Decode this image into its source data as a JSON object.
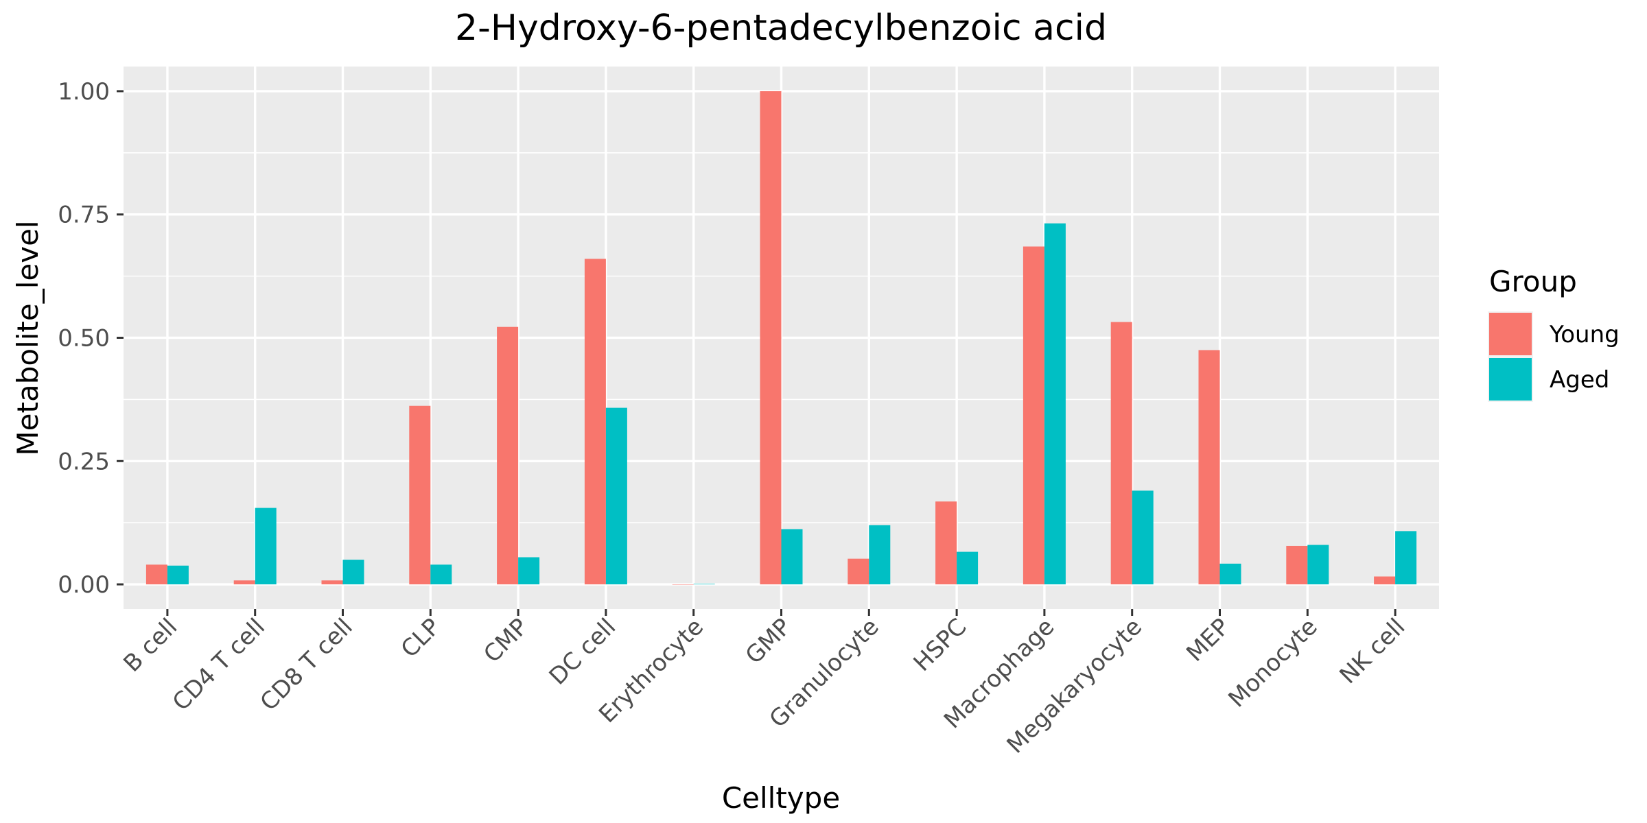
{
  "chart_data": {
    "type": "bar",
    "title": "2-Hydroxy-6-pentadecylbenzoic acid",
    "xlabel": "Celltype",
    "ylabel": "Metabolite_level",
    "categories": [
      "B cell",
      "CD4 T cell",
      "CD8 T cell",
      "CLP",
      "CMP",
      "DC cell",
      "Erythrocyte",
      "GMP",
      "Granulocyte",
      "HSPC",
      "Macrophage",
      "Megakaryocyte",
      "MEP",
      "Monocyte",
      "NK cell"
    ],
    "series": [
      {
        "name": "Young",
        "color": "#F8766D",
        "values": [
          0.04,
          0.008,
          0.008,
          0.362,
          0.522,
          0.66,
          0.0,
          1.0,
          0.052,
          0.168,
          0.685,
          0.532,
          0.475,
          0.078,
          0.016
        ]
      },
      {
        "name": "Aged",
        "color": "#00BFC4",
        "values": [
          0.038,
          0.155,
          0.05,
          0.04,
          0.055,
          0.358,
          0.001,
          0.112,
          0.12,
          0.066,
          0.732,
          0.19,
          0.042,
          0.08,
          0.108
        ]
      }
    ],
    "yticks": [
      0.0,
      0.25,
      0.5,
      0.75,
      1.0
    ],
    "ytick_labels": [
      "0.00",
      "0.25",
      "0.50",
      "0.75",
      "1.00"
    ],
    "ylim": [
      -0.05,
      1.05
    ],
    "legend": {
      "title": "Group",
      "position": "right"
    },
    "grid": true,
    "panel_background": "#EBEBEB",
    "grid_color": "#FFFFFF"
  }
}
